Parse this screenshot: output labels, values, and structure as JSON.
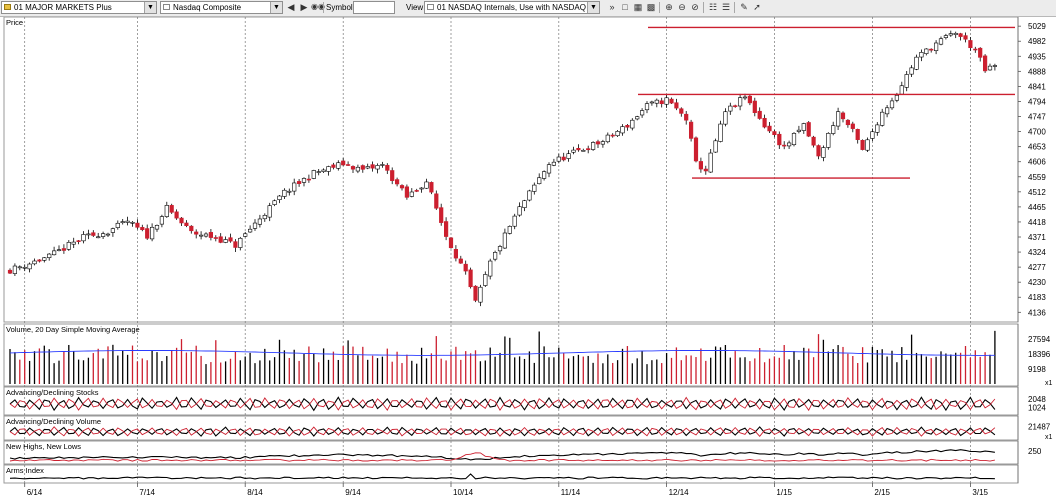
{
  "toolbar": {
    "layout_select": "01 MAJOR MARKETS Plus",
    "symbol_select": "Nasdaq Composite",
    "symbol_label": "Symbol:",
    "symbol_value": "",
    "view_label": "View:",
    "view_select": "01 NASDAQ Internals, Use with NASDAQ",
    "icons": [
      "prev-icon",
      "next-icon",
      "binoculars-icon",
      "new-chart-icon",
      "save-icon",
      "print-icon",
      "copy-icon",
      "zoom-in-icon",
      "zoom-out-icon",
      "zoom-reset-icon",
      "columns-icon",
      "rows-icon",
      "annotate-icon",
      "pointer-icon"
    ]
  },
  "chart_data": [
    {
      "type": "candlestick",
      "title": "Price",
      "y_ticks": [
        4136,
        4183,
        4230,
        4277,
        4324,
        4371,
        4418,
        4465,
        4512,
        4559,
        4606,
        4653,
        4700,
        4747,
        4794,
        4841,
        4888,
        4935,
        4982,
        5029
      ],
      "ylim": [
        4112,
        5042
      ],
      "x_ticks": [
        "6/14",
        "7/14",
        "8/14",
        "9/14",
        "10/14",
        "11/14",
        "12/14",
        "1/15",
        "2/15",
        "3/15"
      ],
      "up_color": "#ffffff",
      "down_color": "#cc1f2f",
      "anchors": [
        [
          0,
          4268
        ],
        [
          8,
          4310
        ],
        [
          15,
          4370
        ],
        [
          20,
          4388
        ],
        [
          24,
          4420
        ],
        [
          28,
          4375
        ],
        [
          32,
          4460
        ],
        [
          37,
          4385
        ],
        [
          42,
          4370
        ],
        [
          46,
          4345
        ],
        [
          51,
          4430
        ],
        [
          56,
          4510
        ],
        [
          62,
          4570
        ],
        [
          68,
          4600
        ],
        [
          72,
          4580
        ],
        [
          76,
          4595
        ],
        [
          81,
          4495
        ],
        [
          85,
          4545
        ],
        [
          89,
          4375
        ],
        [
          93,
          4255
        ],
        [
          95,
          4165
        ],
        [
          98,
          4290
        ],
        [
          104,
          4460
        ],
        [
          110,
          4600
        ],
        [
          116,
          4640
        ],
        [
          121,
          4670
        ],
        [
          126,
          4720
        ],
        [
          130,
          4780
        ],
        [
          134,
          4800
        ],
        [
          138,
          4740
        ],
        [
          140,
          4600
        ],
        [
          142,
          4580
        ],
        [
          146,
          4760
        ],
        [
          150,
          4808
        ],
        [
          154,
          4720
        ],
        [
          158,
          4650
        ],
        [
          162,
          4720
        ],
        [
          165,
          4620
        ],
        [
          169,
          4760
        ],
        [
          172,
          4700
        ],
        [
          174,
          4640
        ],
        [
          178,
          4760
        ],
        [
          181,
          4820
        ],
        [
          185,
          4930
        ],
        [
          189,
          4975
        ],
        [
          193,
          5010
        ],
        [
          197,
          4955
        ],
        [
          199,
          4890
        ],
        [
          201,
          4905
        ]
      ],
      "reference_lines": [
        {
          "kind": "resistance",
          "value": 5025
        },
        {
          "kind": "breakout",
          "value": 4816
        },
        {
          "kind": "support",
          "value": 4555
        }
      ]
    },
    {
      "type": "bar",
      "title": "Volume, 20 Day Simple Moving Average",
      "y_ticks": [
        9198,
        18396,
        27594
      ],
      "ylim": [
        0,
        33000
      ],
      "multiplier_label": "x1",
      "base_level": 18000,
      "ma_level": 19000
    },
    {
      "type": "line",
      "title": "Advancing/Declining Stocks",
      "y_ticks": [
        1024,
        2048
      ],
      "ylim": [
        300,
        2700
      ],
      "center": 1450,
      "amplitude": 850,
      "series": [
        {
          "kind": "advancing",
          "color": "#000000"
        },
        {
          "kind": "declining",
          "color": "#cc1f2f"
        }
      ]
    },
    {
      "type": "line",
      "title": "Advancing/Declining Volume",
      "y_ticks": [
        21487
      ],
      "ylim": [
        0,
        28000
      ],
      "multiplier_label": "x1",
      "center": 12000,
      "amplitude": 9000,
      "series": [
        {
          "kind": "advancing",
          "color": "#000000"
        },
        {
          "kind": "declining",
          "color": "#cc1f2f"
        }
      ]
    },
    {
      "type": "line",
      "title": "New Highs, New Lows",
      "y_ticks": [
        250
      ],
      "ylim": [
        0,
        320
      ],
      "series": [
        {
          "kind": "new-highs",
          "color": "#000000"
        },
        {
          "kind": "new-lows",
          "color": "#cc1f2f"
        }
      ]
    },
    {
      "type": "line",
      "title": "Arms Index",
      "y_ticks": [],
      "ylim": [
        0,
        3
      ],
      "series": [
        {
          "kind": "arms",
          "color": "#000000"
        }
      ]
    }
  ]
}
